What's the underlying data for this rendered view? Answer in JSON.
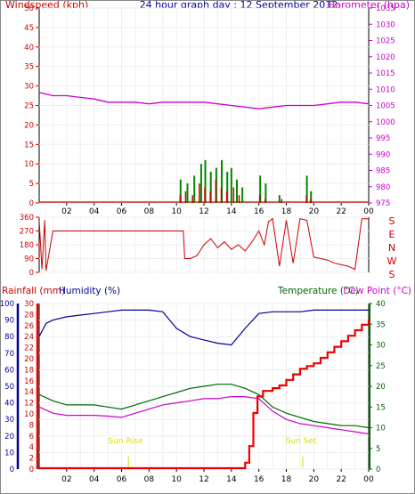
{
  "header": {
    "windspeed_label": "Windspeed (kph)",
    "title": "24 hour graph day : 12 September 2012",
    "barometer_label": "Barometer (hpa)"
  },
  "labels": {
    "rainfall": "Rainfall (mm)",
    "humidity": "Humidity (%)",
    "temperature": "Temperature (°C)",
    "dewpoint": "Dew Point (°C)",
    "sunrise": "Sun Rise",
    "sunset": "Sun Set"
  },
  "colors": {
    "wind": "#cc0000",
    "gust": "#008800",
    "baro": "#cc00cc",
    "dir": "#cc0000",
    "humidity": "#000099",
    "temperature": "#006600",
    "dewpoint": "#cc00cc",
    "rain": "#ee0000",
    "sun": "#dddd00"
  },
  "chart_data": [
    {
      "type": "line",
      "name": "wind-barometer",
      "x_ticks": [
        "02",
        "04",
        "06",
        "08",
        "10",
        "12",
        "14",
        "16",
        "18",
        "20",
        "22",
        "00"
      ],
      "y_left_ticks": [
        0,
        5,
        10,
        15,
        20,
        25,
        30,
        35,
        40,
        45,
        50
      ],
      "y_left_range": [
        0,
        50
      ],
      "y_right_ticks": [
        975,
        980,
        985,
        990,
        995,
        1000,
        1005,
        1010,
        1015,
        1020,
        1025,
        1030,
        1035
      ],
      "y_right_range": [
        975,
        1035
      ],
      "barometer": [
        [
          0,
          1009
        ],
        [
          1,
          1008
        ],
        [
          2,
          1008
        ],
        [
          3,
          1007.5
        ],
        [
          4,
          1007
        ],
        [
          5,
          1006
        ],
        [
          6,
          1006
        ],
        [
          7,
          1006
        ],
        [
          8,
          1005.5
        ],
        [
          9,
          1006
        ],
        [
          10,
          1006
        ],
        [
          11,
          1006
        ],
        [
          12,
          1006
        ],
        [
          13,
          1005.5
        ],
        [
          14,
          1005
        ],
        [
          15,
          1004.5
        ],
        [
          16,
          1004
        ],
        [
          17,
          1004.5
        ],
        [
          18,
          1005
        ],
        [
          19,
          1005
        ],
        [
          20,
          1005
        ],
        [
          21,
          1005.5
        ],
        [
          22,
          1006
        ],
        [
          23,
          1006
        ],
        [
          24,
          1005.5
        ]
      ],
      "wind_spikes": [
        [
          10.2,
          2
        ],
        [
          10.6,
          3
        ],
        [
          11.1,
          2
        ],
        [
          11.6,
          5
        ],
        [
          12.0,
          4
        ],
        [
          12.4,
          3
        ],
        [
          12.8,
          6
        ],
        [
          13.2,
          4
        ],
        [
          13.6,
          3
        ],
        [
          14.1,
          4
        ],
        [
          14.5,
          2
        ],
        [
          16.0,
          2
        ],
        [
          16.4,
          1
        ],
        [
          17.6,
          1
        ],
        [
          19.4,
          2
        ],
        [
          19.7,
          1
        ]
      ],
      "gust_spikes": [
        [
          10.3,
          6
        ],
        [
          10.8,
          5
        ],
        [
          11.3,
          7
        ],
        [
          11.8,
          10
        ],
        [
          12.1,
          11
        ],
        [
          12.5,
          8
        ],
        [
          12.9,
          9
        ],
        [
          13.3,
          11
        ],
        [
          13.7,
          8
        ],
        [
          14.0,
          9
        ],
        [
          14.4,
          6
        ],
        [
          14.8,
          4
        ],
        [
          16.1,
          7
        ],
        [
          16.5,
          5
        ],
        [
          17.5,
          2
        ],
        [
          19.5,
          7
        ],
        [
          19.8,
          3
        ]
      ]
    },
    {
      "type": "line",
      "name": "wind-direction",
      "y_ticks": [
        0,
        90,
        180,
        270,
        360
      ],
      "y_range": [
        0,
        360
      ],
      "compass": [
        "S",
        "E",
        "N",
        "W",
        "S"
      ],
      "direction": [
        [
          0,
          340
        ],
        [
          0.2,
          20
        ],
        [
          0.4,
          340
        ],
        [
          0.5,
          10
        ],
        [
          1.0,
          270
        ],
        [
          3,
          270
        ],
        [
          5,
          270
        ],
        [
          7,
          270
        ],
        [
          9,
          270
        ],
        [
          10.5,
          270
        ],
        [
          10.6,
          90
        ],
        [
          11,
          90
        ],
        [
          11.5,
          110
        ],
        [
          12,
          180
        ],
        [
          12.5,
          220
        ],
        [
          13,
          160
        ],
        [
          13.5,
          200
        ],
        [
          14,
          150
        ],
        [
          14.5,
          180
        ],
        [
          15,
          140
        ],
        [
          15.5,
          200
        ],
        [
          16,
          270
        ],
        [
          16.4,
          180
        ],
        [
          16.7,
          330
        ],
        [
          17,
          350
        ],
        [
          17.5,
          40
        ],
        [
          18,
          340
        ],
        [
          18.5,
          60
        ],
        [
          19,
          350
        ],
        [
          19.5,
          340
        ],
        [
          20,
          100
        ],
        [
          20.5,
          90
        ],
        [
          21,
          80
        ],
        [
          21.5,
          60
        ],
        [
          22,
          50
        ],
        [
          22.5,
          40
        ],
        [
          23,
          20
        ],
        [
          23.5,
          350
        ],
        [
          24,
          350
        ]
      ]
    },
    {
      "type": "line",
      "name": "temp-humidity-rain",
      "y_left_ticks": [
        0,
        10,
        20,
        30,
        40,
        50,
        60,
        70,
        80,
        90,
        100
      ],
      "y_left_range": [
        0,
        100
      ],
      "y_mid_ticks": [
        0,
        2,
        4,
        6,
        8,
        10,
        12,
        14,
        16,
        18,
        20,
        22,
        24,
        26,
        28,
        30
      ],
      "y_mid_range": [
        0,
        30
      ],
      "y_right_ticks": [
        0,
        5,
        10,
        15,
        20,
        25,
        30,
        35,
        40
      ],
      "y_right_range": [
        0,
        40
      ],
      "humidity": [
        [
          0,
          80
        ],
        [
          0.5,
          88
        ],
        [
          1,
          90
        ],
        [
          2,
          92
        ],
        [
          3,
          93
        ],
        [
          4,
          94
        ],
        [
          5,
          95
        ],
        [
          6,
          96
        ],
        [
          7,
          96
        ],
        [
          8,
          96
        ],
        [
          9,
          95
        ],
        [
          10,
          85
        ],
        [
          11,
          80
        ],
        [
          12,
          78
        ],
        [
          13,
          76
        ],
        [
          14,
          75
        ],
        [
          15,
          85
        ],
        [
          16,
          94
        ],
        [
          17,
          95
        ],
        [
          18,
          95
        ],
        [
          19,
          95
        ],
        [
          20,
          96
        ],
        [
          21,
          96
        ],
        [
          22,
          96
        ],
        [
          23,
          96
        ],
        [
          24,
          96
        ]
      ],
      "temperature": [
        [
          0,
          18
        ],
        [
          1,
          16.5
        ],
        [
          2,
          15.5
        ],
        [
          3,
          15.5
        ],
        [
          4,
          15.5
        ],
        [
          5,
          15
        ],
        [
          6,
          14.5
        ],
        [
          7,
          15.5
        ],
        [
          8,
          16.5
        ],
        [
          9,
          17.5
        ],
        [
          10,
          18.5
        ],
        [
          11,
          19.5
        ],
        [
          12,
          20
        ],
        [
          13,
          20.5
        ],
        [
          14,
          20.5
        ],
        [
          15,
          19.5
        ],
        [
          16,
          18
        ],
        [
          17,
          15
        ],
        [
          18,
          13.5
        ],
        [
          19,
          12.5
        ],
        [
          20,
          11.5
        ],
        [
          21,
          11
        ],
        [
          22,
          10.5
        ],
        [
          23,
          10.5
        ],
        [
          24,
          10
        ]
      ],
      "dewpoint": [
        [
          0,
          15
        ],
        [
          1,
          13.5
        ],
        [
          2,
          13
        ],
        [
          3,
          13
        ],
        [
          4,
          13
        ],
        [
          5,
          12.8
        ],
        [
          6,
          12.5
        ],
        [
          7,
          13.5
        ],
        [
          8,
          14.5
        ],
        [
          9,
          15.5
        ],
        [
          10,
          16
        ],
        [
          11,
          16.5
        ],
        [
          12,
          17
        ],
        [
          13,
          17
        ],
        [
          14,
          17.5
        ],
        [
          15,
          17.5
        ],
        [
          16,
          17
        ],
        [
          17,
          14
        ],
        [
          18,
          12
        ],
        [
          19,
          11
        ],
        [
          20,
          10.5
        ],
        [
          21,
          10
        ],
        [
          22,
          9.5
        ],
        [
          23,
          9
        ],
        [
          24,
          8.5
        ]
      ],
      "rainfall": [
        [
          0,
          0
        ],
        [
          13.6,
          0
        ],
        [
          14.8,
          0
        ],
        [
          15.0,
          1
        ],
        [
          15.3,
          4
        ],
        [
          15.6,
          10
        ],
        [
          15.9,
          13
        ],
        [
          16.3,
          14
        ],
        [
          17,
          14.5
        ],
        [
          17.5,
          15
        ],
        [
          18,
          16
        ],
        [
          18.5,
          17
        ],
        [
          19,
          18
        ],
        [
          19.5,
          18.5
        ],
        [
          20,
          19
        ],
        [
          20.5,
          20
        ],
        [
          21,
          21
        ],
        [
          21.5,
          22
        ],
        [
          22,
          23
        ],
        [
          22.5,
          24
        ],
        [
          23,
          25
        ],
        [
          23.5,
          26
        ],
        [
          24,
          27
        ]
      ],
      "sunrise_hour": 6.5,
      "sunset_hour": 19.2
    }
  ]
}
